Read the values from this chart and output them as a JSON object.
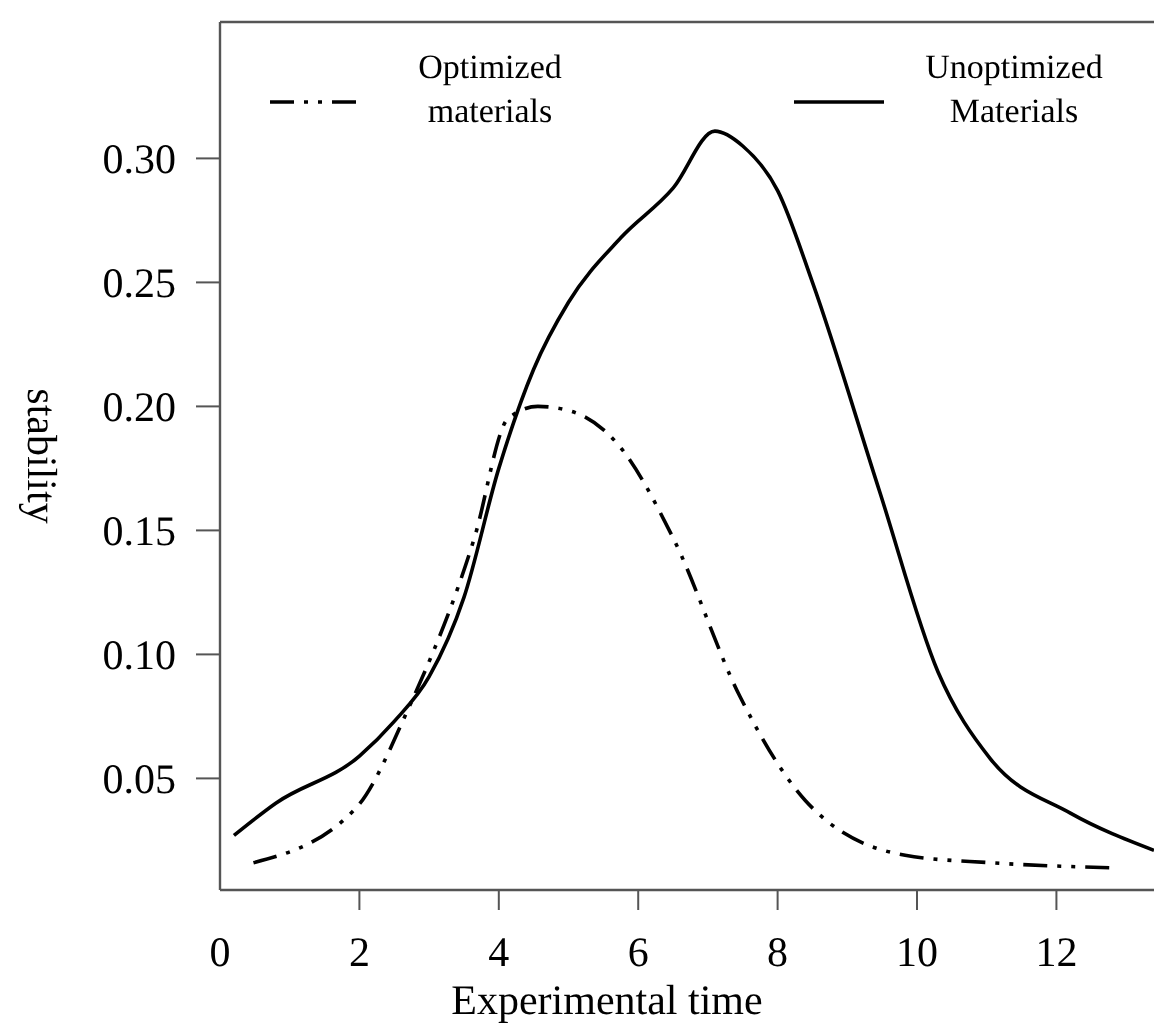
{
  "chart_data": {
    "type": "line",
    "xlabel": "Experimental time",
    "ylabel": "stability",
    "xlim": [
      0,
      13.4
    ],
    "ylim": [
      0.005,
      0.355
    ],
    "xticks": [
      0,
      2,
      4,
      6,
      8,
      10,
      12
    ],
    "yticks": [
      {
        "value": 0.05,
        "label": "0.05"
      },
      {
        "value": 0.1,
        "label": "0.10"
      },
      {
        "value": 0.15,
        "label": "0.15"
      },
      {
        "value": 0.2,
        "label": "0.20"
      },
      {
        "value": 0.25,
        "label": "0.25"
      },
      {
        "value": 0.3,
        "label": "0.30"
      }
    ],
    "grid": false,
    "legend": "top",
    "marker": "none",
    "series": [
      {
        "name": "Optimized materials",
        "color": "#000000",
        "line_style": "dashed",
        "x": [
          0.48,
          1.95,
          2.7,
          3.65,
          4.13,
          4.56,
          5.04,
          5.7,
          6.5,
          7.46,
          8.4,
          9.83,
          11.05,
          12.76
        ],
        "values": [
          0.016,
          0.038,
          0.078,
          0.147,
          0.195,
          0.2,
          0.198,
          0.185,
          0.147,
          0.083,
          0.041,
          0.019,
          0.016,
          0.014
        ]
      },
      {
        "name": "Unoptimized Materials",
        "color": "#000000",
        "line_style": "solid",
        "x": [
          0.2,
          0.8,
          2,
          2.5,
          3,
          3.5,
          4,
          4.5,
          5,
          5.75,
          6.5,
          7.1,
          7.5,
          8,
          8.5,
          9.46,
          10.3,
          11.05,
          12.2,
          13.4
        ],
        "values": [
          0.027,
          0.04,
          0.059,
          0.073,
          0.091,
          0.123,
          0.175,
          0.215,
          0.242,
          0.268,
          0.288,
          0.311,
          0.305,
          0.287,
          0.25,
          0.166,
          0.093,
          0.058,
          0.036,
          0.021
        ]
      }
    ]
  }
}
